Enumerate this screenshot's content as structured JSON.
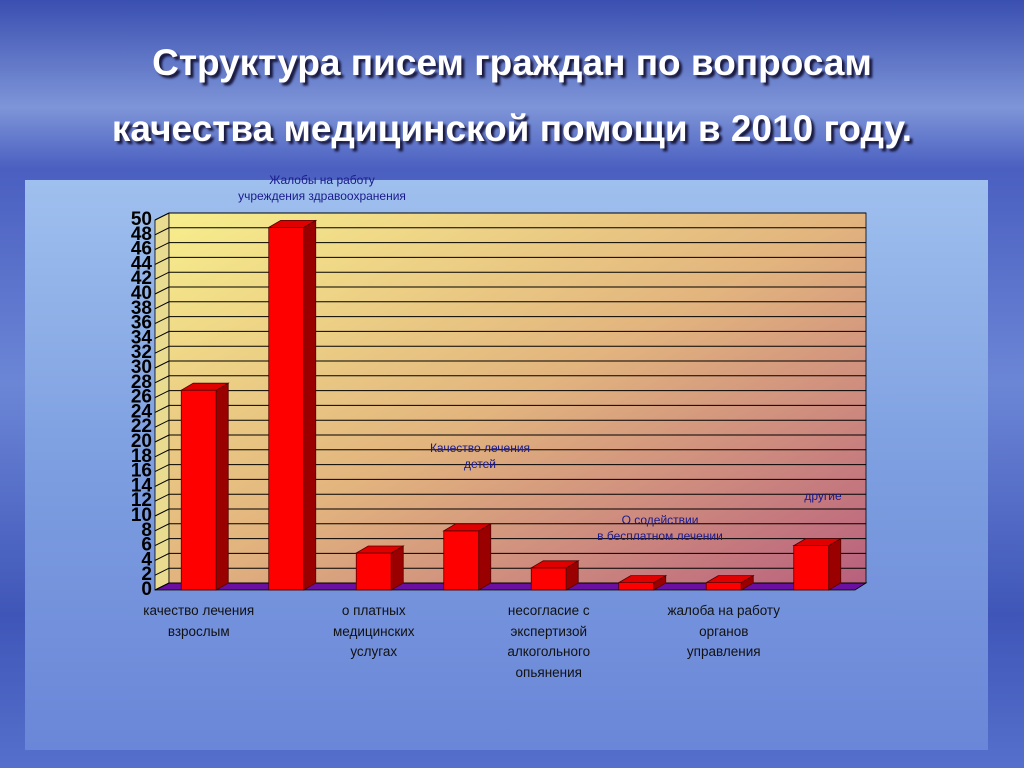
{
  "chart_data": {
    "type": "bar3d",
    "title": "Структура писем граждан по вопросам\nкачества медицинской помощи в 2010 году.",
    "categories": [
      "качество лечения\nвзрослым",
      null,
      "о платных\nмедицинских\nуслугах",
      null,
      "несогласие с\nэкспертизой\nалкогольного\nопьянения",
      null,
      "жалоба на работу\nорганов\nуправления",
      null
    ],
    "annotations": [
      "Жалобы на работу\nучреждения здравоохранения",
      "Качество лечения\nдетей",
      "О содействии\nв бесплатном лечении",
      "другие"
    ],
    "values": [
      27,
      49,
      5,
      8,
      3,
      1,
      1,
      6
    ],
    "color": "#ff0000",
    "ylim": [
      0,
      50
    ],
    "yticks": [
      0,
      2,
      4,
      6,
      8,
      10,
      12,
      14,
      16,
      18,
      20,
      22,
      24,
      26,
      28,
      30,
      32,
      34,
      36,
      38,
      40,
      42,
      44,
      46,
      48,
      50
    ],
    "grid": true
  }
}
